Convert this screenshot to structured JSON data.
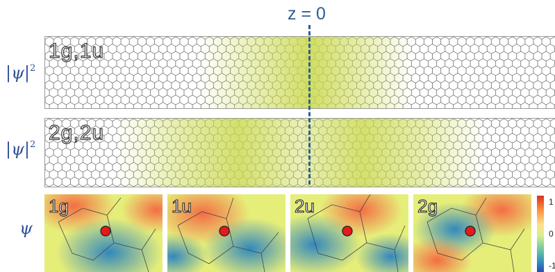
{
  "z_marker": "z = 0",
  "rows": {
    "row1": {
      "symbol": "ψ",
      "superscript": "2"
    },
    "row2": {
      "symbol": "ψ",
      "superscript": "2"
    },
    "row3": {
      "symbol": "ψ"
    }
  },
  "strips": [
    {
      "label": "1g,1u"
    },
    {
      "label": "2g,2u"
    }
  ],
  "tiles": [
    {
      "label": "1g"
    },
    {
      "label": "1u"
    },
    {
      "label": "2u"
    },
    {
      "label": "2g"
    }
  ],
  "colorbar": {
    "max": "1",
    "mid": "0",
    "min": "-1"
  },
  "colors": {
    "highlight": "#c9d84a",
    "marker": "#e41a1c",
    "accent": "#2e5f8e"
  }
}
